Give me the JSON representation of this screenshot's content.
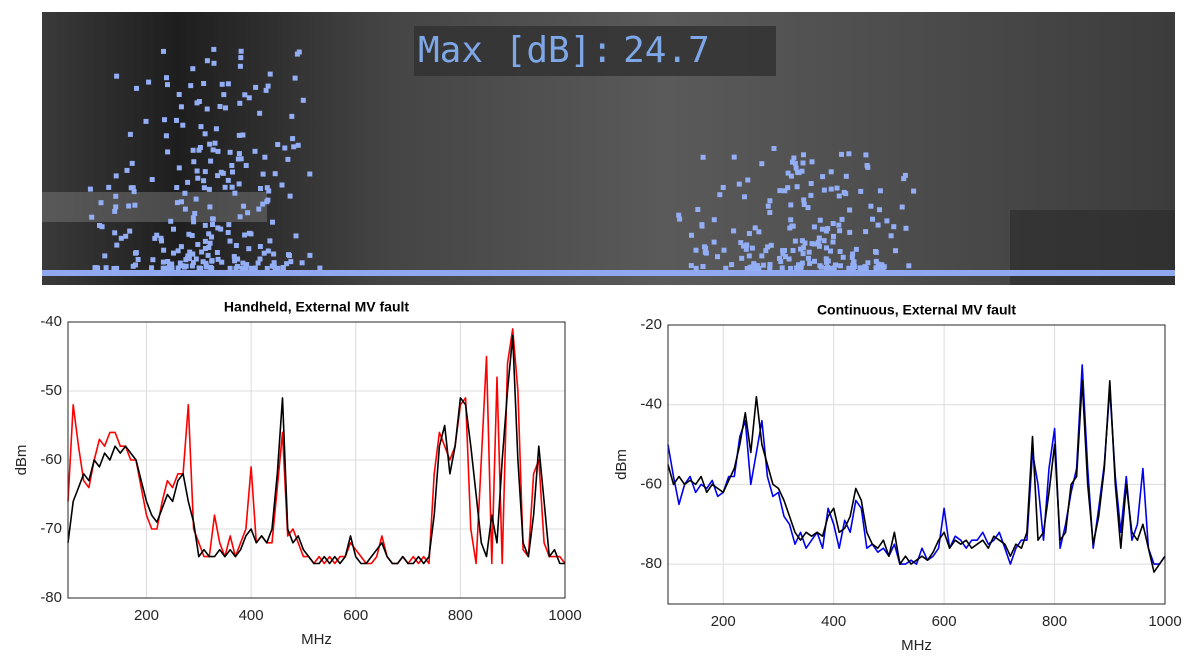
{
  "overlay": {
    "label": "Max [dB]:",
    "value": 24.7
  },
  "chart_data": [
    {
      "type": "line",
      "title": "Handheld, External MV fault",
      "xlabel": "MHz",
      "ylabel": "dBm",
      "xlim": [
        50,
        1000
      ],
      "ylim": [
        -80,
        -40
      ],
      "xticks": [
        200,
        400,
        600,
        800,
        1000
      ],
      "yticks": [
        -80,
        -70,
        -60,
        -50,
        -40
      ],
      "grid": true,
      "x": [
        50,
        60,
        70,
        80,
        90,
        100,
        110,
        120,
        130,
        140,
        150,
        160,
        170,
        180,
        190,
        200,
        210,
        220,
        230,
        240,
        250,
        260,
        270,
        280,
        290,
        300,
        310,
        320,
        330,
        340,
        350,
        360,
        370,
        380,
        390,
        400,
        410,
        420,
        430,
        440,
        450,
        460,
        470,
        480,
        490,
        500,
        510,
        520,
        530,
        540,
        550,
        560,
        570,
        580,
        590,
        600,
        610,
        620,
        630,
        640,
        650,
        660,
        670,
        680,
        690,
        700,
        710,
        720,
        730,
        740,
        750,
        760,
        770,
        780,
        790,
        800,
        810,
        820,
        830,
        840,
        850,
        860,
        870,
        880,
        890,
        900,
        910,
        920,
        930,
        940,
        950,
        960,
        970,
        980,
        990,
        1000
      ],
      "series": [
        {
          "color": "#ff0000",
          "values": [
            -66,
            -52,
            -58,
            -63,
            -64,
            -60,
            -57,
            -58,
            -56,
            -56,
            -58,
            -58,
            -60,
            -60,
            -64,
            -68,
            -70,
            -70,
            -66,
            -63,
            -64,
            -62,
            -62,
            -52,
            -70,
            -72,
            -74,
            -74,
            -68,
            -72,
            -74,
            -71,
            -74,
            -72,
            -70,
            -61,
            -72,
            -71,
            -72,
            -72,
            -64,
            -56,
            -71,
            -70,
            -72,
            -74,
            -74,
            -75,
            -74,
            -75,
            -74,
            -75,
            -74,
            -74,
            -72,
            -73,
            -74,
            -75,
            -75,
            -74,
            -71,
            -74,
            -75,
            -75,
            -74,
            -75,
            -74,
            -75,
            -74,
            -75,
            -62,
            -56,
            -58,
            -60,
            -58,
            -52,
            -51,
            -70,
            -75,
            -60,
            -45,
            -75,
            -48,
            -75,
            -46,
            -41,
            -50,
            -73,
            -74,
            -62,
            -60,
            -72,
            -74,
            -74,
            -74,
            -75
          ]
        },
        {
          "color": "#000000",
          "values": [
            -72,
            -66,
            -64,
            -62,
            -63,
            -60,
            -61,
            -59,
            -60,
            -58,
            -59,
            -58,
            -59,
            -60,
            -63,
            -66,
            -68,
            -69,
            -67,
            -65,
            -66,
            -63,
            -62,
            -66,
            -69,
            -74,
            -73,
            -74,
            -74,
            -73,
            -74,
            -73,
            -74,
            -73,
            -71,
            -70,
            -72,
            -71,
            -72,
            -70,
            -62,
            -51,
            -70,
            -72,
            -71,
            -73,
            -74,
            -75,
            -75,
            -74,
            -75,
            -74,
            -75,
            -74,
            -71,
            -74,
            -75,
            -75,
            -74,
            -73,
            -72,
            -74,
            -75,
            -75,
            -74,
            -75,
            -75,
            -74,
            -75,
            -74,
            -68,
            -58,
            -55,
            -62,
            -58,
            -51,
            -52,
            -58,
            -65,
            -72,
            -74,
            -68,
            -72,
            -60,
            -50,
            -42,
            -60,
            -72,
            -74,
            -68,
            -58,
            -66,
            -74,
            -73,
            -75,
            -75
          ]
        }
      ]
    },
    {
      "type": "line",
      "title": "Continuous, External MV fault",
      "xlabel": "MHz",
      "ylabel": "dBm",
      "xlim": [
        100,
        1000
      ],
      "ylim": [
        -90,
        -20
      ],
      "xticks": [
        200,
        400,
        600,
        800,
        1000
      ],
      "yticks": [
        -80,
        -60,
        -40,
        -20
      ],
      "grid": true,
      "x": [
        100,
        110,
        120,
        130,
        140,
        150,
        160,
        170,
        180,
        190,
        200,
        210,
        220,
        230,
        240,
        250,
        260,
        270,
        280,
        290,
        300,
        310,
        320,
        330,
        340,
        350,
        360,
        370,
        380,
        390,
        400,
        410,
        420,
        430,
        440,
        450,
        460,
        470,
        480,
        490,
        500,
        510,
        520,
        530,
        540,
        550,
        560,
        570,
        580,
        590,
        600,
        610,
        620,
        630,
        640,
        650,
        660,
        670,
        680,
        690,
        700,
        710,
        720,
        730,
        740,
        750,
        760,
        770,
        780,
        790,
        800,
        810,
        820,
        830,
        840,
        850,
        860,
        870,
        880,
        890,
        900,
        910,
        920,
        930,
        940,
        950,
        960,
        970,
        980,
        990,
        1000
      ],
      "series": [
        {
          "color": "#0000ee",
          "values": [
            -50,
            -58,
            -65,
            -60,
            -58,
            -62,
            -60,
            -61,
            -59,
            -63,
            -62,
            -58,
            -58,
            -48,
            -44,
            -60,
            -52,
            -44,
            -58,
            -63,
            -62,
            -68,
            -70,
            -75,
            -72,
            -76,
            -74,
            -72,
            -76,
            -66,
            -70,
            -76,
            -69,
            -72,
            -64,
            -66,
            -76,
            -75,
            -77,
            -76,
            -78,
            -75,
            -80,
            -80,
            -79,
            -80,
            -76,
            -79,
            -78,
            -76,
            -66,
            -76,
            -73,
            -74,
            -76,
            -74,
            -74,
            -72,
            -75,
            -74,
            -72,
            -76,
            -80,
            -76,
            -74,
            -74,
            -52,
            -60,
            -74,
            -56,
            -46,
            -76,
            -70,
            -62,
            -56,
            -30,
            -56,
            -76,
            -66,
            -55,
            -36,
            -58,
            -72,
            -58,
            -74,
            -70,
            -56,
            -76,
            -80,
            -80,
            -78
          ]
        },
        {
          "color": "#000000",
          "values": [
            -55,
            -60,
            -58,
            -60,
            -59,
            -60,
            -58,
            -62,
            -60,
            -61,
            -62,
            -59,
            -56,
            -50,
            -42,
            -52,
            -38,
            -50,
            -55,
            -60,
            -61,
            -64,
            -68,
            -72,
            -74,
            -72,
            -73,
            -72,
            -73,
            -68,
            -66,
            -72,
            -71,
            -68,
            -61,
            -64,
            -72,
            -75,
            -76,
            -74,
            -78,
            -72,
            -80,
            -78,
            -80,
            -79,
            -78,
            -79,
            -77,
            -74,
            -72,
            -76,
            -74,
            -75,
            -74,
            -76,
            -75,
            -74,
            -76,
            -73,
            -74,
            -75,
            -78,
            -75,
            -76,
            -72,
            -48,
            -74,
            -72,
            -62,
            -50,
            -74,
            -72,
            -60,
            -58,
            -34,
            -60,
            -75,
            -68,
            -56,
            -34,
            -60,
            -76,
            -60,
            -72,
            -74,
            -70,
            -76,
            -82,
            -80,
            -78
          ]
        }
      ]
    }
  ]
}
